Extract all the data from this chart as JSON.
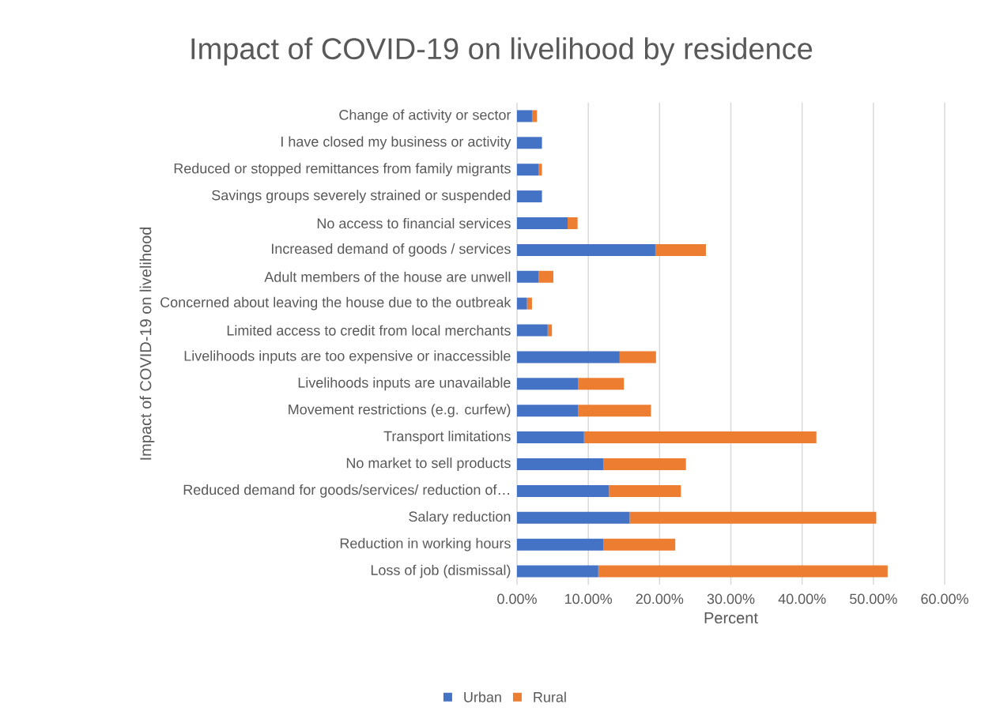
{
  "chart_data": {
    "type": "bar",
    "orientation": "horizontal",
    "stacked": true,
    "title": "Impact of COVID-19 on livelihood by residence",
    "xlabel": "Percent",
    "ylabel": "Impact of COVID-19 on livelihood",
    "categories": [
      "Change of activity or sector",
      "I have closed my business or activity",
      "Reduced or stopped remittances from family migrants",
      "Savings groups severely strained or suspended",
      "No access to financial services",
      "Increased demand of goods /  services",
      "Adult members of the house are unwell",
      "Concerned about leaving the house due to the outbreak",
      "Limited access to credit from local merchants",
      "Livelihoods inputs are too expensive or inaccessible",
      "Livelihoods inputs are unavailable",
      "Movement restrictions (e.g. curfew)",
      "Transport limitations",
      "No market to sell products",
      "Reduced demand for goods/services/ reduction of…",
      "Salary reduction",
      "Reduction in working hours",
      "Loss of job (dismissal)"
    ],
    "series": [
      {
        "name": "Urban",
        "color": "#4472c4",
        "values": [
          2.1,
          3.5,
          3.0,
          3.5,
          7.1,
          19.4,
          3.0,
          1.4,
          4.3,
          14.4,
          8.6,
          8.6,
          9.4,
          12.1,
          12.9,
          15.8,
          12.1,
          11.4
        ]
      },
      {
        "name": "Rural",
        "color": "#ed7d31",
        "values": [
          0.7,
          0,
          0.5,
          0,
          1.4,
          7.1,
          2.1,
          0.7,
          0.6,
          5.1,
          6.4,
          10.2,
          32.6,
          11.6,
          10.1,
          34.6,
          10.1,
          40.6
        ]
      }
    ],
    "xlim": [
      0,
      60
    ],
    "xticks": [
      {
        "value": 0,
        "label": "0.00%"
      },
      {
        "value": 10,
        "label": "10.00%"
      },
      {
        "value": 20,
        "label": "20.00%"
      },
      {
        "value": 30,
        "label": "30.00%"
      },
      {
        "value": 40,
        "label": "40.00%"
      },
      {
        "value": 50,
        "label": "50.00%"
      },
      {
        "value": 60,
        "label": "60.00%"
      }
    ],
    "grid": "x",
    "legend": "bottom"
  }
}
